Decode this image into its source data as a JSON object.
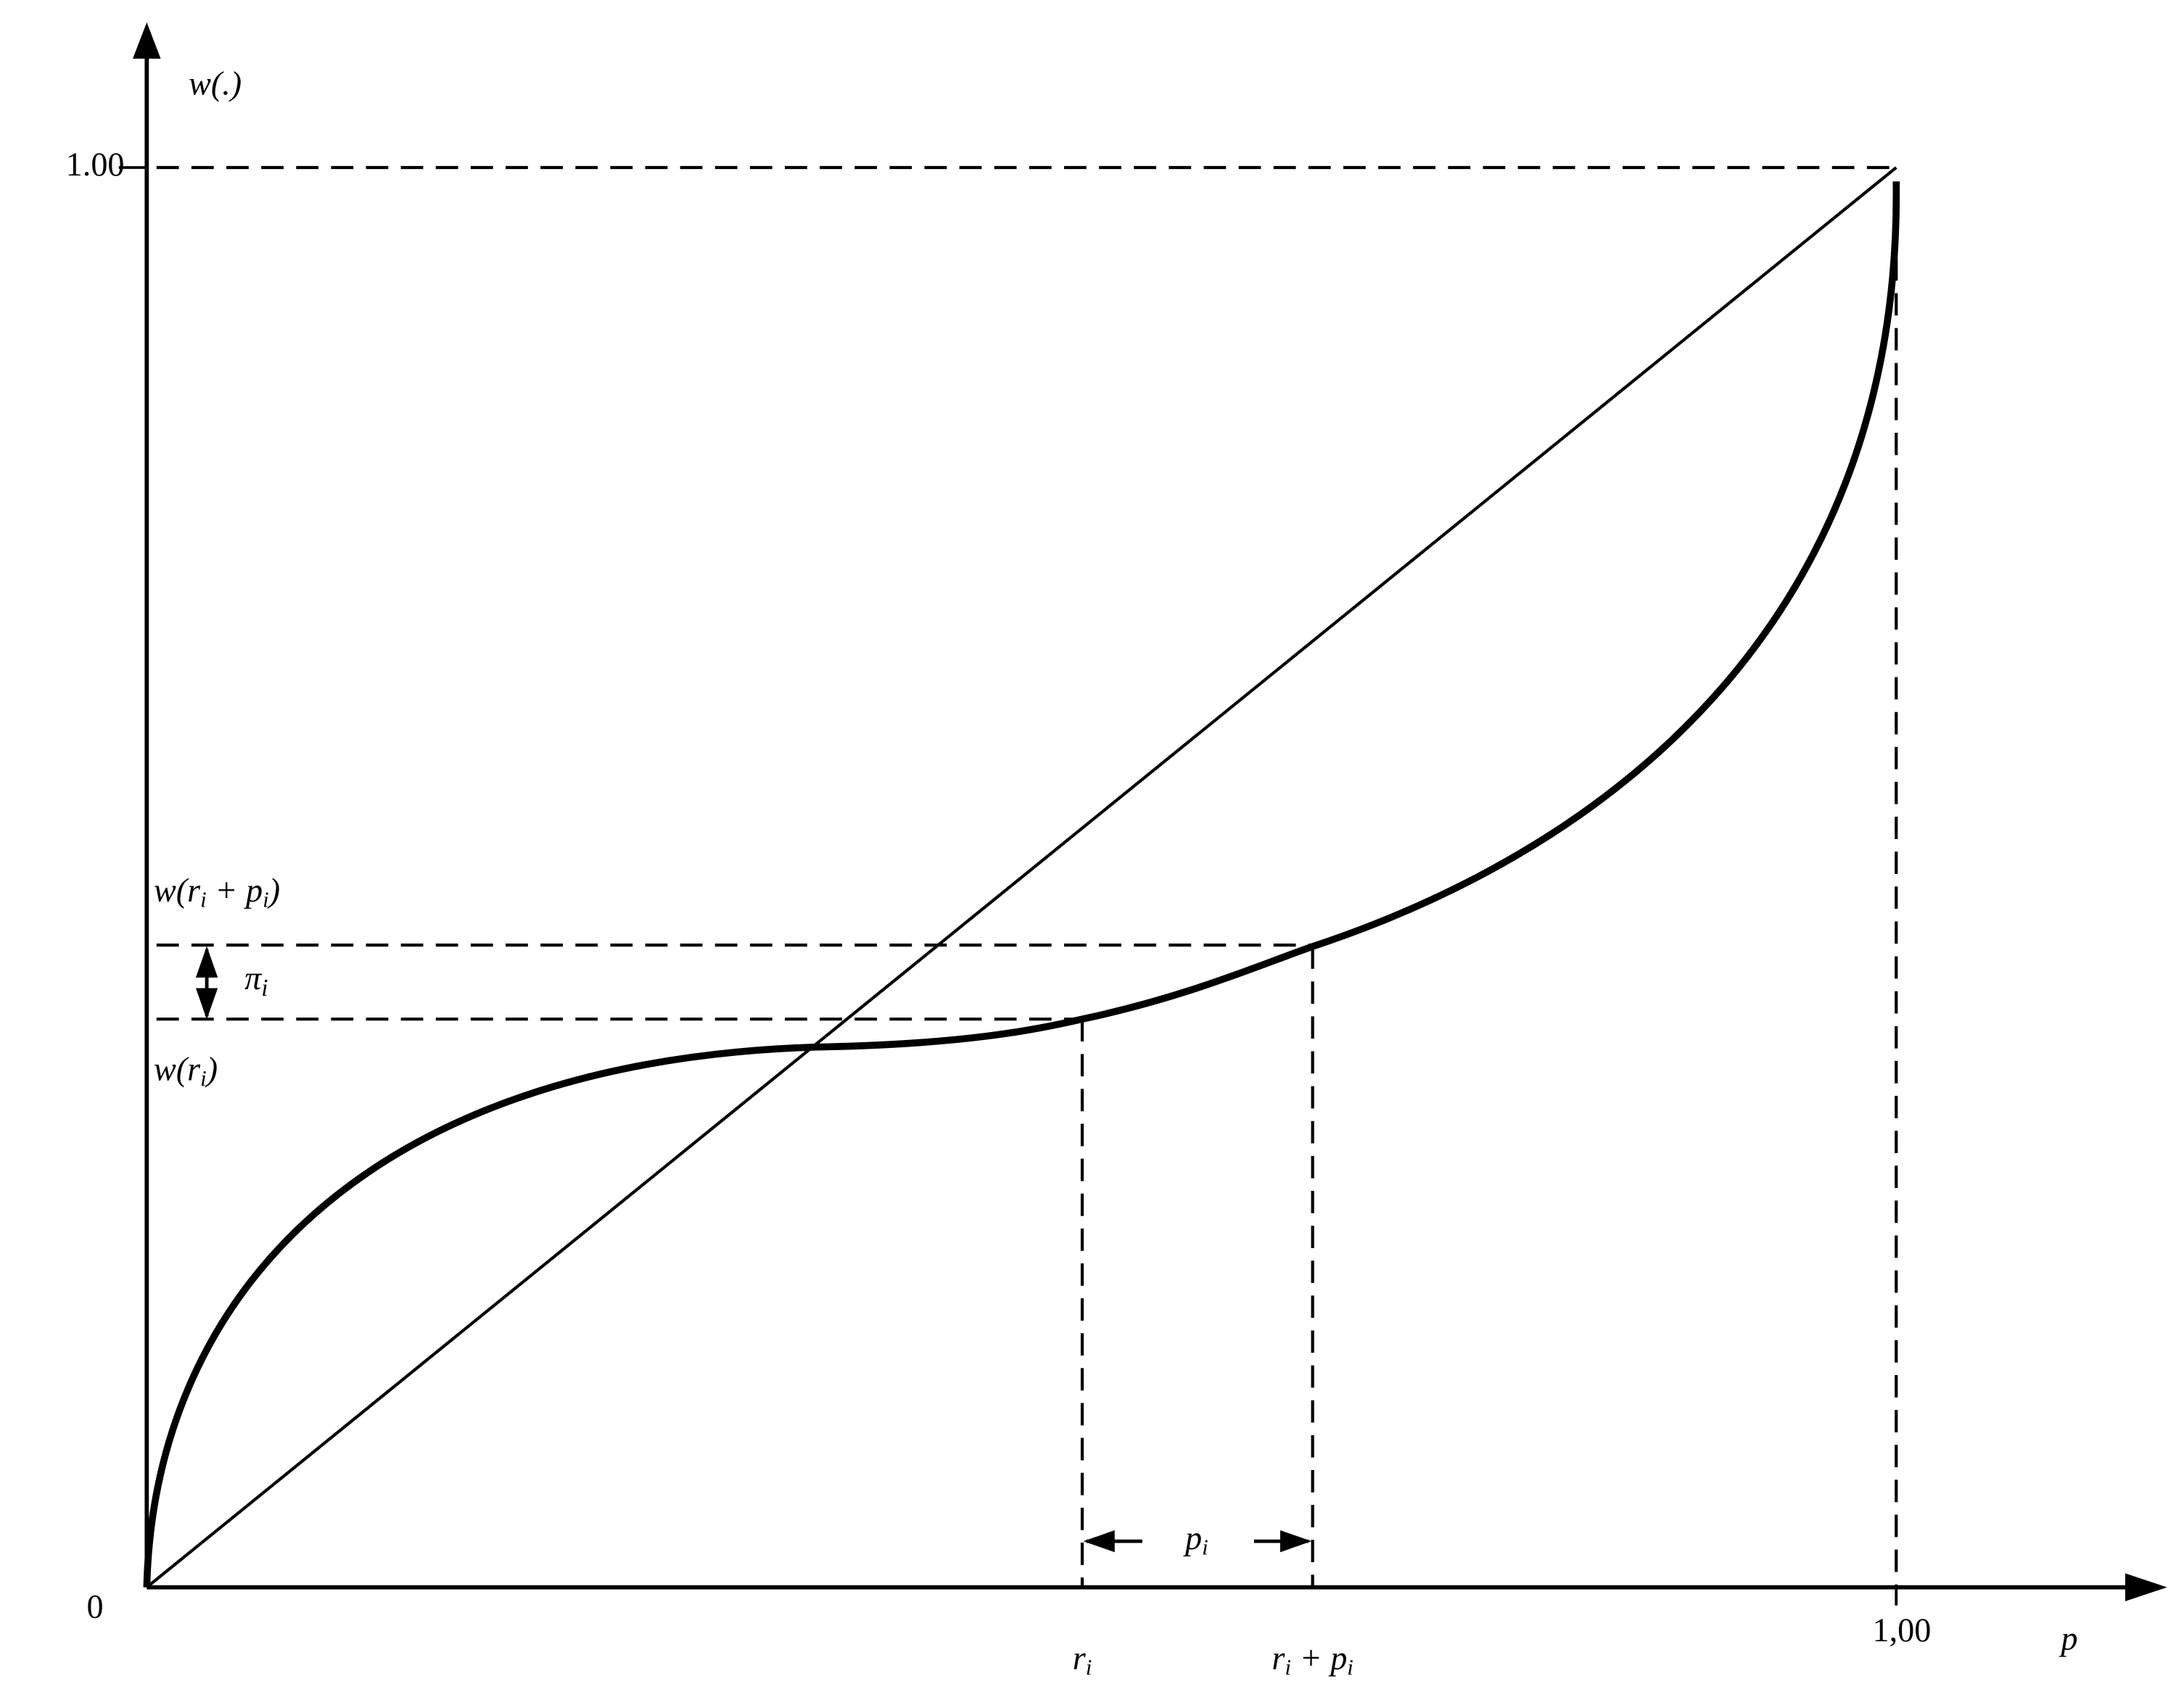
{
  "axes": {
    "y_label": [
      {
        "text": "w(.)"
      }
    ],
    "x_label": [
      {
        "text": "p"
      }
    ],
    "origin_label": [
      {
        "text": "0"
      }
    ],
    "y_max_label": [
      {
        "text": "1.00"
      }
    ],
    "x_max_label": [
      {
        "text": "1,00"
      }
    ]
  },
  "annotations": {
    "w_ri_pi": [
      {
        "text": "w(r"
      },
      {
        "text": "i",
        "subscript": true
      },
      {
        "text": " + p"
      },
      {
        "text": "i",
        "subscript": true
      },
      {
        "text": ")"
      }
    ],
    "w_ri": [
      {
        "text": "w(r"
      },
      {
        "text": "i",
        "subscript": true
      },
      {
        "text": ")"
      }
    ],
    "pi_gap": [
      {
        "text": "π"
      },
      {
        "text": "i",
        "subscript": true
      }
    ],
    "ri": [
      {
        "text": "r"
      },
      {
        "text": "i",
        "subscript": true
      }
    ],
    "ri_pi": [
      {
        "text": "r"
      },
      {
        "text": "i",
        "subscript": true
      },
      {
        "text": " + p"
      },
      {
        "text": "i",
        "subscript": true
      }
    ],
    "p_i": [
      {
        "text": "p"
      },
      {
        "text": "i",
        "subscript": true
      }
    ]
  }
}
